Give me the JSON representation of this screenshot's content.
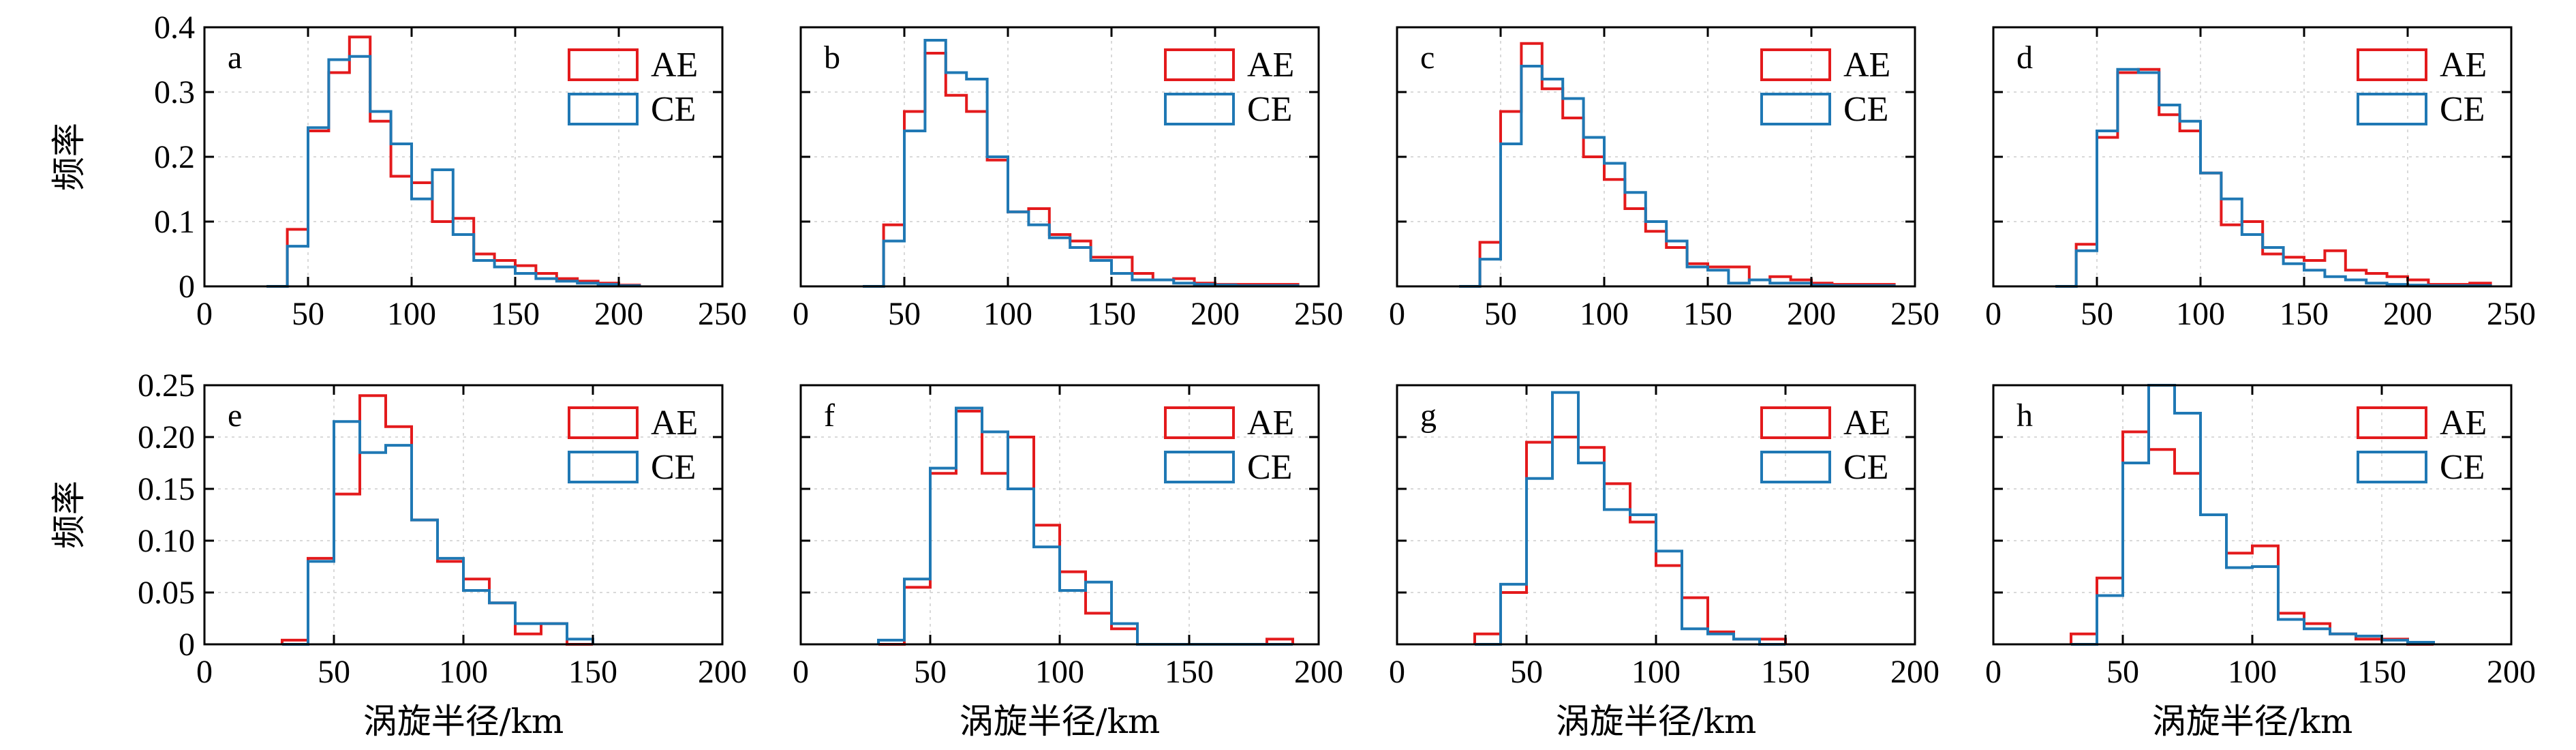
{
  "colors": {
    "AE": "#e31a1c",
    "CE": "#1f78b4",
    "grid": "#d9d9d9",
    "axis": "#000000"
  },
  "chart_data": [
    {
      "type": "histogram-step",
      "panel": "a",
      "xlabel": "",
      "ylabel": "频率",
      "xlim": [
        0,
        250
      ],
      "ylim": [
        0,
        0.4
      ],
      "xticks": [
        0,
        50,
        100,
        150,
        200,
        250
      ],
      "yticks": [
        0,
        0.1,
        0.2,
        0.3,
        0.4
      ],
      "ytick_labels": [
        "0",
        "0.1",
        "0.2",
        "0.3",
        "0.4"
      ],
      "grid": true,
      "legend": "top-right",
      "bin_edges": [
        30,
        40,
        50,
        60,
        70,
        80,
        90,
        100,
        110,
        120,
        130,
        140,
        150,
        160,
        170,
        180,
        190,
        200,
        210
      ],
      "series": [
        {
          "name": "AE",
          "values": [
            0,
            0.088,
            0.24,
            0.33,
            0.385,
            0.255,
            0.17,
            0.16,
            0.1,
            0.105,
            0.05,
            0.04,
            0.032,
            0.02,
            0.012,
            0.008,
            0.005,
            0.002
          ]
        },
        {
          "name": "CE",
          "values": [
            0,
            0.062,
            0.245,
            0.35,
            0.355,
            0.27,
            0.22,
            0.135,
            0.18,
            0.08,
            0.04,
            0.03,
            0.02,
            0.012,
            0.008,
            0.005,
            0.003,
            0.001
          ]
        }
      ]
    },
    {
      "type": "histogram-step",
      "panel": "b",
      "xlabel": "",
      "ylabel": "",
      "xlim": [
        0,
        250
      ],
      "ylim": [
        0,
        0.4
      ],
      "xticks": [
        0,
        50,
        100,
        150,
        200,
        250
      ],
      "yticks": [
        0,
        0.1,
        0.2,
        0.3,
        0.4
      ],
      "ytick_labels": [],
      "grid": true,
      "legend": "top-right",
      "bin_edges": [
        30,
        40,
        50,
        60,
        70,
        80,
        90,
        100,
        110,
        120,
        130,
        140,
        150,
        160,
        170,
        180,
        190,
        200,
        210,
        220,
        230,
        240
      ],
      "series": [
        {
          "name": "AE",
          "values": [
            0,
            0.095,
            0.27,
            0.36,
            0.295,
            0.27,
            0.195,
            0.115,
            0.12,
            0.08,
            0.07,
            0.045,
            0.045,
            0.02,
            0.01,
            0.012,
            0.005,
            0.003,
            0.003,
            0.003,
            0.003
          ]
        },
        {
          "name": "CE",
          "values": [
            0,
            0.07,
            0.24,
            0.38,
            0.33,
            0.32,
            0.2,
            0.115,
            0.095,
            0.075,
            0.06,
            0.04,
            0.02,
            0.01,
            0.01,
            0.005,
            0.003,
            0.002,
            0.001,
            0.001,
            0.001
          ]
        }
      ]
    },
    {
      "type": "histogram-step",
      "panel": "c",
      "xlabel": "",
      "ylabel": "",
      "xlim": [
        0,
        250
      ],
      "ylim": [
        0,
        0.4
      ],
      "xticks": [
        0,
        50,
        100,
        150,
        200,
        250
      ],
      "yticks": [
        0,
        0.1,
        0.2,
        0.3,
        0.4
      ],
      "ytick_labels": [],
      "grid": true,
      "legend": "top-right",
      "bin_edges": [
        30,
        40,
        50,
        60,
        70,
        80,
        90,
        100,
        110,
        120,
        130,
        140,
        150,
        160,
        170,
        180,
        190,
        200,
        210,
        220,
        230,
        240
      ],
      "series": [
        {
          "name": "AE",
          "values": [
            0,
            0.068,
            0.27,
            0.375,
            0.305,
            0.26,
            0.2,
            0.165,
            0.12,
            0.085,
            0.06,
            0.035,
            0.03,
            0.03,
            0.01,
            0.015,
            0.01,
            0.005,
            0.003,
            0.003,
            0.003
          ]
        },
        {
          "name": "CE",
          "values": [
            0,
            0.042,
            0.22,
            0.34,
            0.32,
            0.29,
            0.23,
            0.19,
            0.145,
            0.1,
            0.07,
            0.03,
            0.025,
            0.005,
            0.01,
            0.005,
            0.005,
            0.002,
            0.001,
            0.001,
            0.001
          ]
        }
      ]
    },
    {
      "type": "histogram-step",
      "panel": "d",
      "xlabel": "",
      "ylabel": "",
      "xlim": [
        0,
        250
      ],
      "ylim": [
        0,
        0.4
      ],
      "xticks": [
        0,
        50,
        100,
        150,
        200,
        250
      ],
      "yticks": [
        0,
        0.1,
        0.2,
        0.3,
        0.4
      ],
      "ytick_labels": [],
      "grid": true,
      "legend": "top-right",
      "bin_edges": [
        30,
        40,
        50,
        60,
        70,
        80,
        90,
        100,
        110,
        120,
        130,
        140,
        150,
        160,
        170,
        180,
        190,
        200,
        210,
        220,
        230,
        240
      ],
      "series": [
        {
          "name": "AE",
          "values": [
            0,
            0.065,
            0.23,
            0.33,
            0.335,
            0.265,
            0.24,
            0.175,
            0.095,
            0.1,
            0.05,
            0.045,
            0.04,
            0.055,
            0.025,
            0.02,
            0.015,
            0.01,
            0.003,
            0.003,
            0.005
          ]
        },
        {
          "name": "CE",
          "values": [
            0,
            0.055,
            0.24,
            0.335,
            0.33,
            0.28,
            0.255,
            0.175,
            0.135,
            0.08,
            0.06,
            0.035,
            0.025,
            0.015,
            0.01,
            0.005,
            0.003,
            0.002,
            0.001,
            0.001,
            0.001
          ]
        }
      ]
    },
    {
      "type": "histogram-step",
      "panel": "e",
      "xlabel": "涡旋半径/km",
      "ylabel": "频率",
      "xlim": [
        0,
        200
      ],
      "ylim": [
        0,
        0.25
      ],
      "xticks": [
        0,
        50,
        100,
        150,
        200
      ],
      "yticks": [
        0,
        0.05,
        0.1,
        0.15,
        0.2,
        0.25
      ],
      "ytick_labels": [
        "0",
        "0.05",
        "0.10",
        "0.15",
        "0.20",
        "0.25"
      ],
      "grid": true,
      "legend": "top-right",
      "bin_edges": [
        30,
        40,
        50,
        60,
        70,
        80,
        90,
        100,
        110,
        120,
        130,
        140,
        150
      ],
      "series": [
        {
          "name": "AE",
          "values": [
            0.004,
            0.083,
            0.145,
            0.24,
            0.21,
            0.12,
            0.08,
            0.063,
            0.04,
            0.01,
            0.02,
            0.0
          ]
        },
        {
          "name": "CE",
          "values": [
            0,
            0.08,
            0.215,
            0.185,
            0.192,
            0.12,
            0.083,
            0.052,
            0.04,
            0.02,
            0.02,
            0.005
          ]
        }
      ]
    },
    {
      "type": "histogram-step",
      "panel": "f",
      "xlabel": "涡旋半径/km",
      "ylabel": "",
      "xlim": [
        0,
        200
      ],
      "ylim": [
        0,
        0.25
      ],
      "xticks": [
        0,
        50,
        100,
        150,
        200
      ],
      "yticks": [
        0,
        0.05,
        0.1,
        0.15,
        0.2,
        0.25
      ],
      "ytick_labels": [],
      "grid": true,
      "legend": "top-right",
      "bin_edges": [
        30,
        40,
        50,
        60,
        70,
        80,
        90,
        100,
        110,
        120,
        130,
        140,
        150,
        160,
        170,
        180,
        190
      ],
      "series": [
        {
          "name": "AE",
          "values": [
            0,
            0.055,
            0.165,
            0.225,
            0.165,
            0.2,
            0.115,
            0.07,
            0.03,
            0.015,
            0,
            0,
            0,
            0,
            0,
            0.005
          ]
        },
        {
          "name": "CE",
          "values": [
            0.004,
            0.063,
            0.17,
            0.228,
            0.205,
            0.15,
            0.094,
            0.052,
            0.06,
            0.02,
            0,
            0,
            0,
            0,
            0,
            0
          ]
        }
      ]
    },
    {
      "type": "histogram-step",
      "panel": "g",
      "xlabel": "涡旋半径/km",
      "ylabel": "",
      "xlim": [
        0,
        200
      ],
      "ylim": [
        0,
        0.25
      ],
      "xticks": [
        0,
        50,
        100,
        150,
        200
      ],
      "yticks": [
        0,
        0.05,
        0.1,
        0.15,
        0.2,
        0.25
      ],
      "ytick_labels": [],
      "grid": true,
      "legend": "top-right",
      "bin_edges": [
        30,
        40,
        50,
        60,
        70,
        80,
        90,
        100,
        110,
        120,
        130,
        140,
        150
      ],
      "series": [
        {
          "name": "AE",
          "values": [
            0.01,
            0.05,
            0.195,
            0.2,
            0.19,
            0.155,
            0.118,
            0.076,
            0.045,
            0.012,
            0.005,
            0.005
          ]
        },
        {
          "name": "CE",
          "values": [
            0,
            0.058,
            0.16,
            0.243,
            0.175,
            0.13,
            0.125,
            0.09,
            0.015,
            0.01,
            0.005,
            0.0
          ]
        }
      ]
    },
    {
      "type": "histogram-step",
      "panel": "h",
      "xlabel": "涡旋半径/km",
      "ylabel": "",
      "xlim": [
        0,
        200
      ],
      "ylim": [
        0,
        0.25
      ],
      "xticks": [
        0,
        50,
        100,
        150,
        200
      ],
      "yticks": [
        0,
        0.05,
        0.1,
        0.15,
        0.2,
        0.25
      ],
      "ytick_labels": [],
      "grid": true,
      "legend": "top-right",
      "bin_edges": [
        30,
        40,
        50,
        60,
        70,
        80,
        90,
        100,
        110,
        120,
        130,
        140,
        150,
        160,
        170
      ],
      "series": [
        {
          "name": "AE",
          "values": [
            0.01,
            0.064,
            0.205,
            0.188,
            0.165,
            0.125,
            0.088,
            0.095,
            0.03,
            0.02,
            0.01,
            0.005,
            0.005,
            0.0
          ]
        },
        {
          "name": "CE",
          "values": [
            0,
            0.047,
            0.175,
            0.25,
            0.223,
            0.125,
            0.074,
            0.075,
            0.024,
            0.015,
            0.01,
            0.008,
            0.004,
            0.002
          ]
        }
      ]
    }
  ]
}
